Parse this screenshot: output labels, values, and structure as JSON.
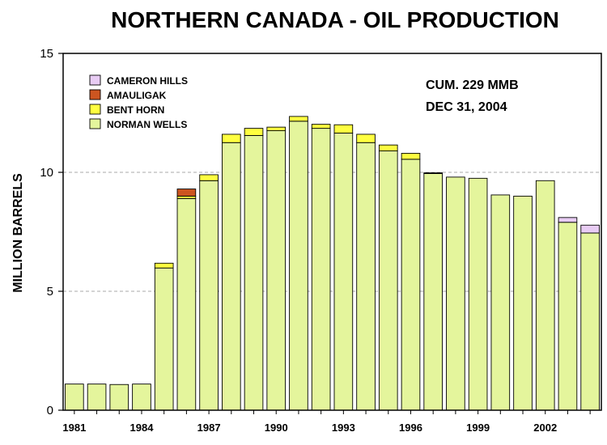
{
  "chart_data": {
    "type": "bar",
    "stacked": true,
    "title": "NORTHERN CANADA - OIL PRODUCTION",
    "ylabel": "MILLION BARRELS",
    "xlabel": "",
    "ylim": [
      0,
      15
    ],
    "yticks": [
      "0",
      "5",
      "10",
      "15"
    ],
    "grid": "horizontal-dashed",
    "legend_placement": "top-left",
    "annotation": [
      "CUM. 229 MMB",
      "DEC 31, 2004"
    ],
    "x": [
      1981,
      1982,
      1983,
      1984,
      1985,
      1986,
      1987,
      1988,
      1989,
      1990,
      1991,
      1992,
      1993,
      1994,
      1995,
      1996,
      1997,
      1998,
      1999,
      2000,
      2001,
      2002,
      2003,
      2004
    ],
    "xtick_labels": [
      "1981",
      "1984",
      "1987",
      "1990",
      "1993",
      "1996",
      "1999",
      "2002"
    ],
    "xtick_years": [
      1981,
      1984,
      1987,
      1990,
      1993,
      1996,
      1999,
      2002
    ],
    "series": [
      {
        "name": "NORMAN WELLS",
        "color": "#e4f59c",
        "values": [
          1.1,
          1.1,
          1.08,
          1.1,
          5.98,
          8.9,
          9.65,
          11.25,
          11.55,
          11.75,
          12.15,
          11.85,
          11.65,
          11.25,
          10.9,
          10.55,
          9.95,
          9.8,
          9.75,
          9.05,
          9.0,
          9.65,
          7.9,
          7.45
        ]
      },
      {
        "name": "BENT HORN",
        "color": "#ffff40",
        "values": [
          0,
          0,
          0,
          0,
          0.2,
          0.1,
          0.25,
          0.35,
          0.3,
          0.15,
          0.2,
          0.17,
          0.35,
          0.35,
          0.25,
          0.25,
          0.03,
          0,
          0,
          0,
          0,
          0,
          0,
          0
        ]
      },
      {
        "name": "AMAULIGAK",
        "color": "#cc5520",
        "values": [
          0,
          0,
          0,
          0,
          0,
          0.3,
          0,
          0,
          0,
          0,
          0,
          0,
          0,
          0,
          0,
          0,
          0,
          0,
          0,
          0,
          0,
          0,
          0,
          0
        ]
      },
      {
        "name": "CAMERON HILLS",
        "color": "#e8ccf4",
        "values": [
          0,
          0,
          0,
          0,
          0,
          0,
          0,
          0,
          0,
          0,
          0,
          0,
          0,
          0,
          0,
          0,
          0,
          0,
          0,
          0,
          0,
          0,
          0.2,
          0.33
        ]
      }
    ]
  }
}
